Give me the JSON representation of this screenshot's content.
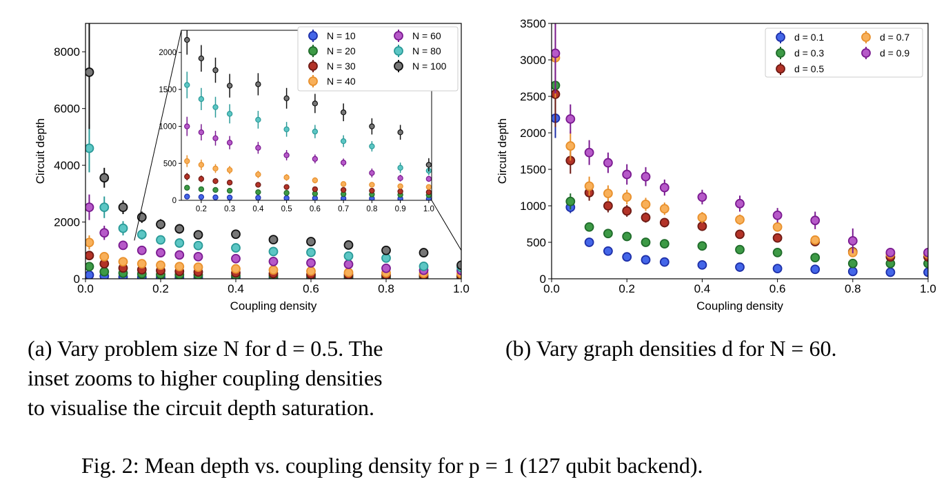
{
  "figure_caption": "Fig. 2: Mean depth vs. coupling density for p = 1 (127 qubit backend).",
  "colors": {
    "blue": "#4466e8",
    "green": "#3d9a46",
    "red": "#b33328",
    "orange": "#f8b05a",
    "magenta": "#b659c8",
    "cyan": "#5cc6c4",
    "gray": "#777777",
    "err_blue": "#1d2fa8",
    "err_green": "#1f6b2a",
    "err_red": "#6e1a14",
    "err_orange": "#e8902c",
    "err_magenta": "#7a1a90",
    "err_cyan": "#2a9a98",
    "err_gray": "#111111"
  },
  "chart_data": [
    {
      "type": "scatter",
      "caption": "(a) Vary problem size N for d = 0.5. The inset zooms to higher coupling densities to visualise the circuit depth saturation.",
      "caption_lines": [
        "(a) Vary problem size N for d = 0.5. The",
        "inset zooms to higher coupling densities",
        "to visualise the circuit depth saturation."
      ],
      "xlabel": "Coupling density",
      "ylabel": "Circuit depth",
      "xlim": [
        0.0,
        1.0
      ],
      "ylim": [
        0,
        9000
      ],
      "xticks": [
        "0.0",
        "0.2",
        "0.4",
        "0.6",
        "0.8",
        "1.0"
      ],
      "yticks": [
        "0",
        "2000",
        "4000",
        "6000",
        "8000"
      ],
      "legend_position": "upper-right",
      "x": [
        0.01,
        0.05,
        0.1,
        0.15,
        0.2,
        0.25,
        0.3,
        0.4,
        0.5,
        0.6,
        0.7,
        0.8,
        0.9,
        1.0
      ],
      "series": [
        {
          "name": "N = 10",
          "color": "blue",
          "values": [
            130,
            90,
            60,
            50,
            45,
            40,
            38,
            35,
            30,
            28,
            26,
            24,
            22,
            20
          ]
        },
        {
          "name": "N = 20",
          "color": "green",
          "values": [
            430,
            250,
            200,
            170,
            150,
            140,
            130,
            110,
            100,
            90,
            85,
            80,
            75,
            70
          ]
        },
        {
          "name": "N = 30",
          "color": "red",
          "values": [
            820,
            530,
            380,
            320,
            290,
            260,
            240,
            210,
            180,
            150,
            140,
            130,
            120,
            110
          ]
        },
        {
          "name": "N = 40",
          "color": "orange",
          "values": [
            1280,
            780,
            600,
            530,
            480,
            430,
            410,
            350,
            310,
            270,
            220,
            210,
            190,
            180
          ]
        },
        {
          "name": "N = 60",
          "color": "magenta",
          "values": [
            2520,
            1620,
            1180,
            1000,
            920,
            840,
            780,
            710,
            610,
            560,
            510,
            370,
            300,
            290
          ]
        },
        {
          "name": "N = 80",
          "color": "cyan",
          "values": [
            4600,
            2520,
            1780,
            1560,
            1370,
            1260,
            1170,
            1090,
            960,
            930,
            800,
            730,
            440,
            400
          ]
        },
        {
          "name": "N = 100",
          "color": "gray",
          "values": [
            7280,
            3560,
            2520,
            2170,
            1920,
            1760,
            1550,
            1570,
            1380,
            1310,
            1190,
            1000,
            920,
            480
          ]
        }
      ],
      "errors": [
        [
          40,
          25,
          15,
          10,
          8,
          8,
          8,
          6,
          6,
          5,
          5,
          5,
          5,
          5
        ],
        [
          80,
          50,
          40,
          30,
          25,
          25,
          22,
          20,
          18,
          16,
          15,
          15,
          14,
          14
        ],
        [
          150,
          90,
          60,
          50,
          45,
          40,
          38,
          32,
          30,
          28,
          25,
          25,
          24,
          22
        ],
        [
          250,
          140,
          90,
          80,
          70,
          60,
          55,
          50,
          45,
          40,
          35,
          35,
          30,
          30
        ],
        [
          450,
          250,
          160,
          130,
          110,
          100,
          90,
          80,
          70,
          60,
          55,
          60,
          45,
          40
        ],
        [
          850,
          380,
          250,
          180,
          150,
          140,
          130,
          120,
          100,
          90,
          80,
          70,
          70,
          60
        ],
        [
          2000,
          350,
          240,
          200,
          180,
          170,
          160,
          150,
          140,
          130,
          120,
          110,
          100,
          90
        ]
      ],
      "inset": {
        "xlim": [
          0.13,
          1.01
        ],
        "ylim": [
          0,
          2300
        ],
        "xticks": [
          "0.2",
          "0.3",
          "0.4",
          "0.5",
          "0.6",
          "0.7",
          "0.8",
          "0.9",
          "1.0"
        ],
        "yticks": [
          "0",
          "500",
          "1000",
          "1500",
          "2000"
        ]
      }
    },
    {
      "type": "scatter",
      "caption": "(b) Vary graph densities d for N = 60.",
      "caption_lines": [
        "(b) Vary graph densities d for N = 60."
      ],
      "xlabel": "Coupling density",
      "ylabel": "Circuit depth",
      "xlim": [
        0.0,
        1.0
      ],
      "ylim": [
        0,
        3500
      ],
      "xticks": [
        "0.0",
        "0.2",
        "0.4",
        "0.6",
        "0.8",
        "1.0"
      ],
      "yticks": [
        "0",
        "500",
        "1000",
        "1500",
        "2000",
        "2500",
        "3000",
        "3500"
      ],
      "legend_position": "upper-right",
      "x": [
        0.01,
        0.05,
        0.1,
        0.15,
        0.2,
        0.25,
        0.3,
        0.4,
        0.5,
        0.6,
        0.7,
        0.8,
        0.9,
        1.0
      ],
      "series": [
        {
          "name": "d = 0.1",
          "color": "blue",
          "values": [
            2200,
            980,
            500,
            380,
            300,
            260,
            230,
            190,
            160,
            140,
            130,
            100,
            90,
            90
          ]
        },
        {
          "name": "d = 0.3",
          "color": "green",
          "values": [
            2650,
            1060,
            710,
            620,
            580,
            500,
            480,
            450,
            400,
            360,
            290,
            210,
            210,
            210
          ]
        },
        {
          "name": "d = 0.5",
          "color": "red",
          "values": [
            2530,
            1620,
            1180,
            1000,
            930,
            840,
            770,
            720,
            610,
            560,
            510,
            370,
            300,
            300
          ]
        },
        {
          "name": "d = 0.7",
          "color": "orange",
          "values": [
            3030,
            1820,
            1270,
            1170,
            1120,
            1020,
            960,
            840,
            810,
            710,
            530,
            360,
            340,
            340
          ]
        },
        {
          "name": "d = 0.9",
          "color": "magenta",
          "values": [
            3090,
            2190,
            1730,
            1590,
            1430,
            1400,
            1250,
            1120,
            1030,
            870,
            800,
            520,
            360,
            360
          ]
        }
      ],
      "errors": [
        [
          270,
          80,
          40,
          30,
          25,
          20,
          20,
          15,
          15,
          12,
          12,
          10,
          10,
          10
        ],
        [
          400,
          110,
          60,
          50,
          40,
          40,
          35,
          30,
          30,
          25,
          25,
          20,
          20,
          20
        ],
        [
          450,
          180,
          110,
          90,
          80,
          70,
          65,
          60,
          55,
          50,
          45,
          40,
          35,
          35
        ],
        [
          550,
          200,
          130,
          110,
          100,
          90,
          85,
          75,
          70,
          65,
          60,
          50,
          40,
          40
        ],
        [
          550,
          200,
          170,
          140,
          140,
          130,
          110,
          100,
          110,
          100,
          120,
          170,
          40,
          40
        ]
      ]
    }
  ]
}
